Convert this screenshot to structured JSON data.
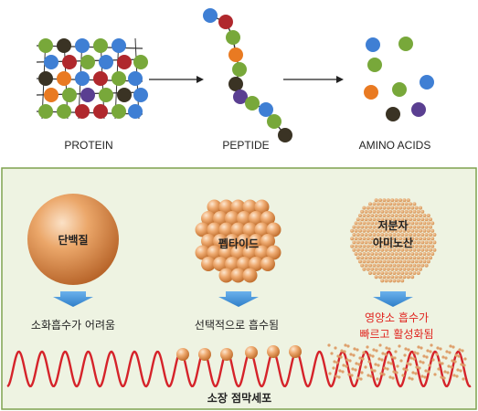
{
  "top_labels": {
    "protein": "PROTEIN",
    "peptide": "PEPTIDE",
    "amino": "AMINO ACIDS"
  },
  "panel": {
    "sphere1_label": "단백질",
    "sphere2_label": "펩타이드",
    "sphere3_line1": "저분자",
    "sphere3_line2": "아미노산",
    "desc1": "소화흡수가 어려움",
    "desc2": "선택적으로 흡수됨",
    "desc3_line1": "영양소 흡수가",
    "desc3_line2": "빠르고 활성화됨",
    "intestine_label": "소장 점막세포"
  },
  "colors": {
    "blue": "#3f7fd4",
    "green": "#78a83a",
    "red": "#b0282d",
    "orange": "#e97a22",
    "purple": "#5a3f91",
    "dark": "#3a3324",
    "panel_bg": "#eef3e2",
    "panel_border": "#7fa24f",
    "wave": "#d5232a",
    "arrow_blue": "#3e8fd6",
    "highlight_text": "#e0241f"
  }
}
